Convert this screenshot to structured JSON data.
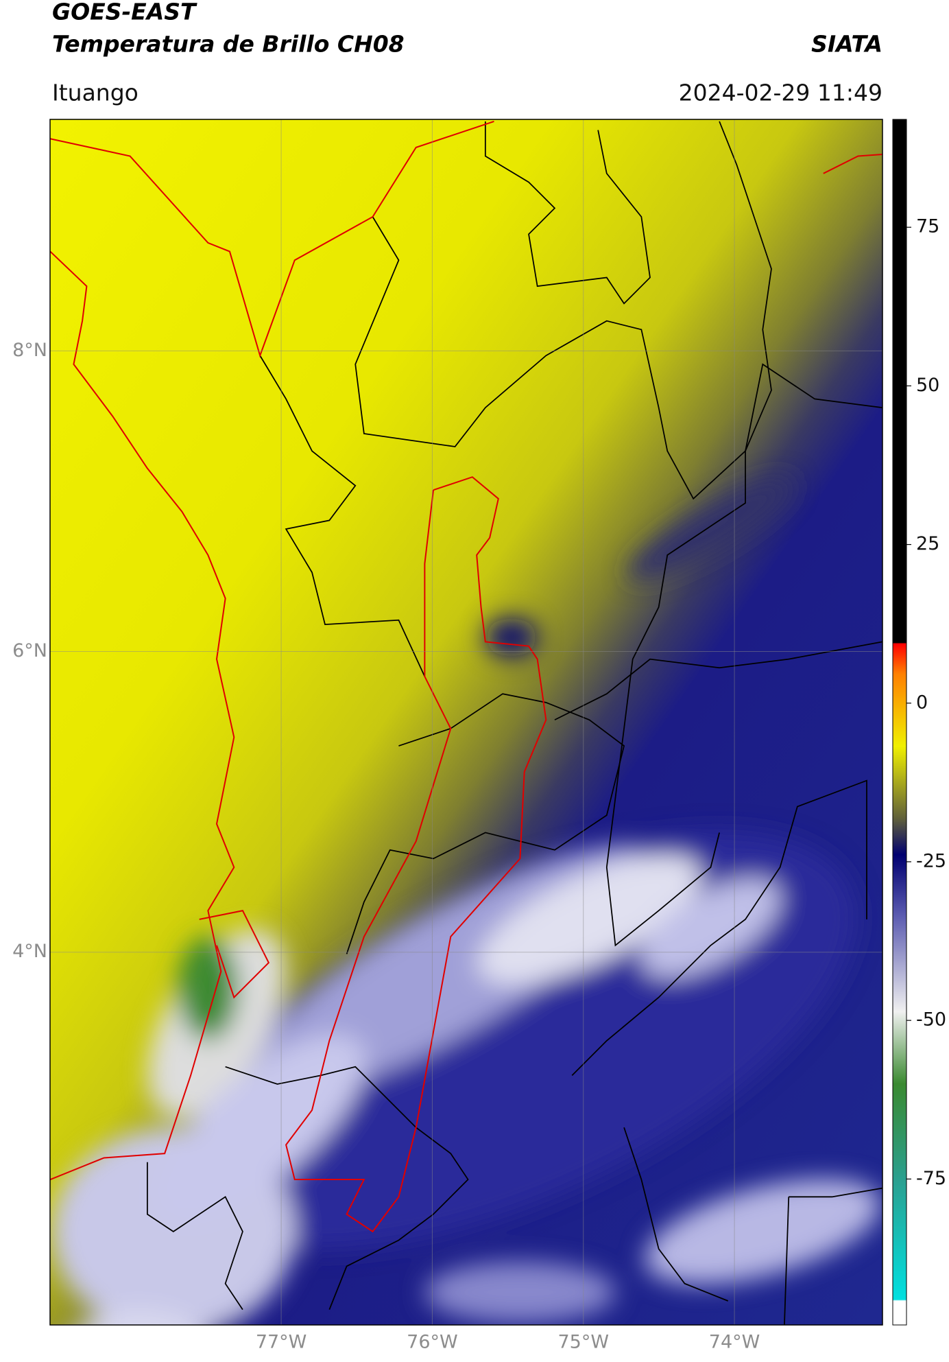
{
  "map": {
    "title": "GOES-EAST",
    "subtitle": "Temperatura de Brillo CH08",
    "brand": "SIATA",
    "location": "Ituango",
    "timestamp": "2024-02-29 11:49",
    "lon_range": [
      -78.53,
      -73.02
    ],
    "lat_range": [
      1.52,
      9.54
    ],
    "lon_ticks": [
      {
        "value": -77,
        "label": "77°W"
      },
      {
        "value": -76,
        "label": "76°W"
      },
      {
        "value": -75,
        "label": "75°W"
      },
      {
        "value": -74,
        "label": "74°W"
      }
    ],
    "lat_ticks": [
      {
        "value": 8,
        "label": "8°N"
      },
      {
        "value": 6,
        "label": "6°N"
      },
      {
        "value": 4,
        "label": "4°N"
      }
    ],
    "colorbar": {
      "range": [
        -98,
        92
      ],
      "ticks": [
        75,
        50,
        25,
        0,
        -25,
        -50,
        -75
      ]
    }
  }
}
